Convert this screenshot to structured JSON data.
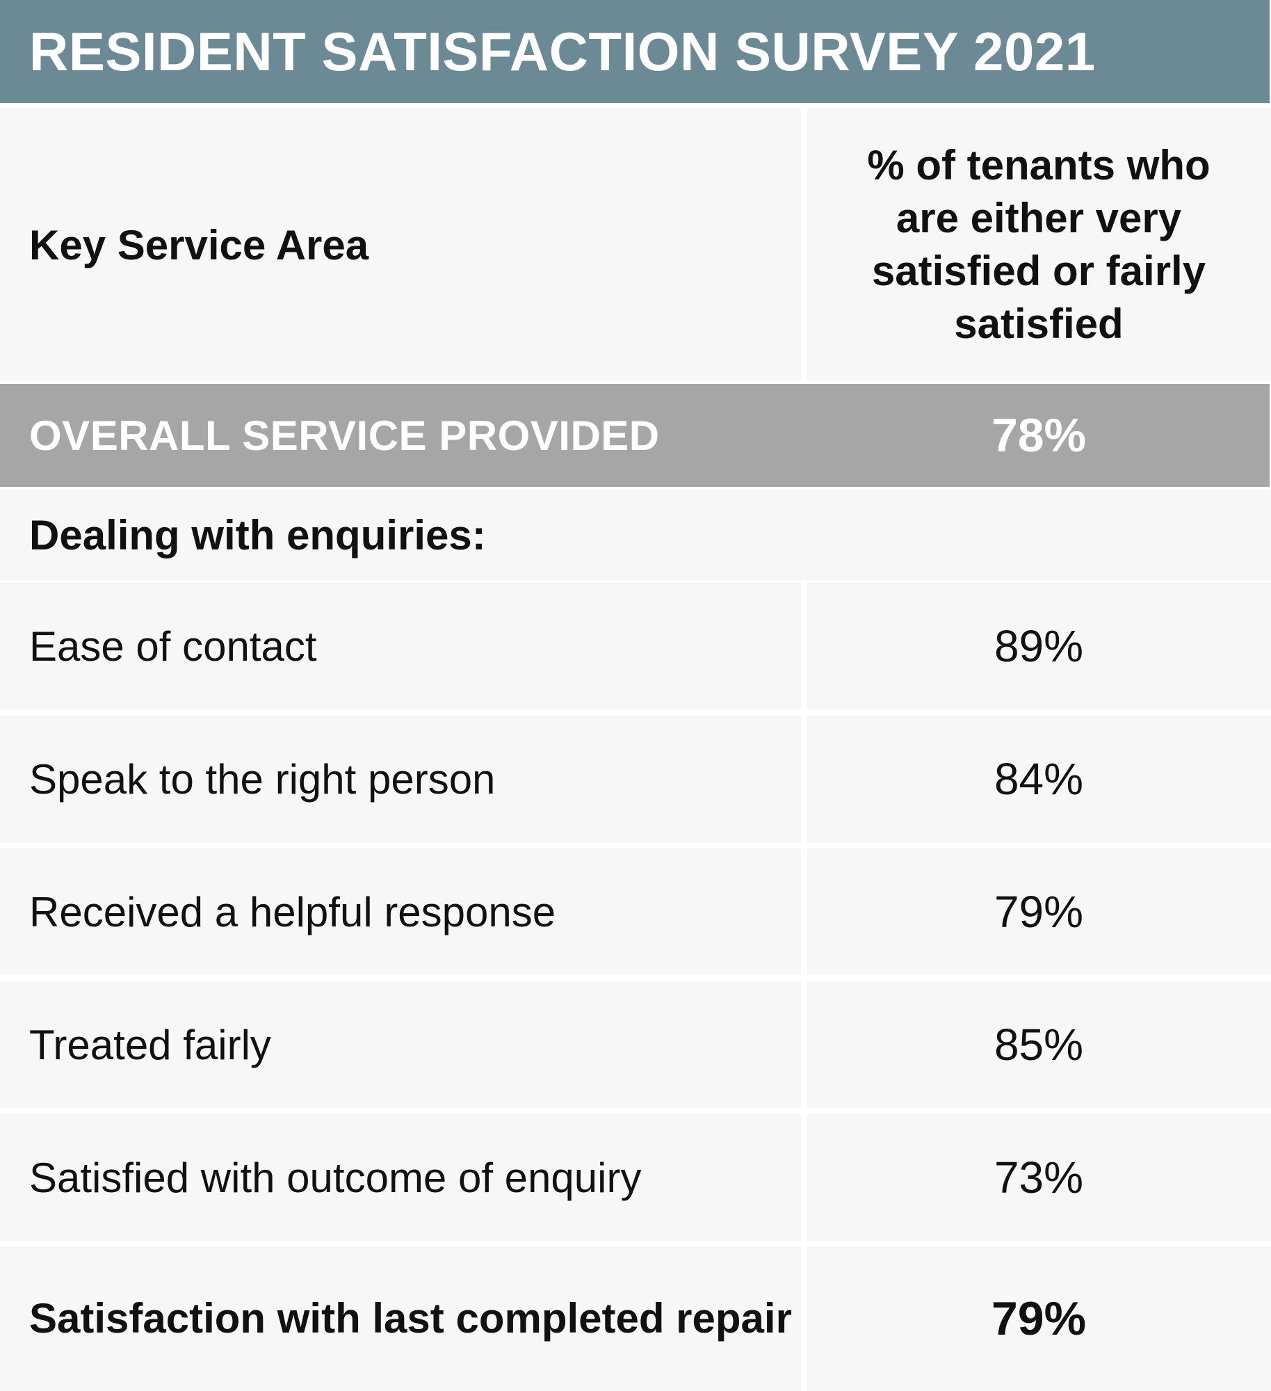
{
  "title": "RESIDENT SATISFACTION SURVEY 2021",
  "table": {
    "header": {
      "area_label": "Key Service Area",
      "percent_label": "% of tenants who are either very satisfied or fairly satisfied"
    },
    "overall": {
      "label": "OVERALL SERVICE PROVIDED",
      "value": "78%"
    },
    "section_label": "Dealing with enquiries:",
    "rows": [
      {
        "label": "Ease of contact",
        "value": "89%"
      },
      {
        "label": "Speak to the right person",
        "value": "84%"
      },
      {
        "label": "Received a helpful response",
        "value": "79%"
      },
      {
        "label": "Treated fairly",
        "value": "85%"
      },
      {
        "label": "Satisfied with outcome of enquiry",
        "value": "73%"
      }
    ],
    "repair": {
      "label": "Satisfaction with last completed repair",
      "value": "79%"
    }
  },
  "colors": {
    "title_bar": "#6b8a96",
    "overall_bar": "#a6a6a6",
    "cell_background": "#f7f7f7",
    "text": "#111111"
  }
}
